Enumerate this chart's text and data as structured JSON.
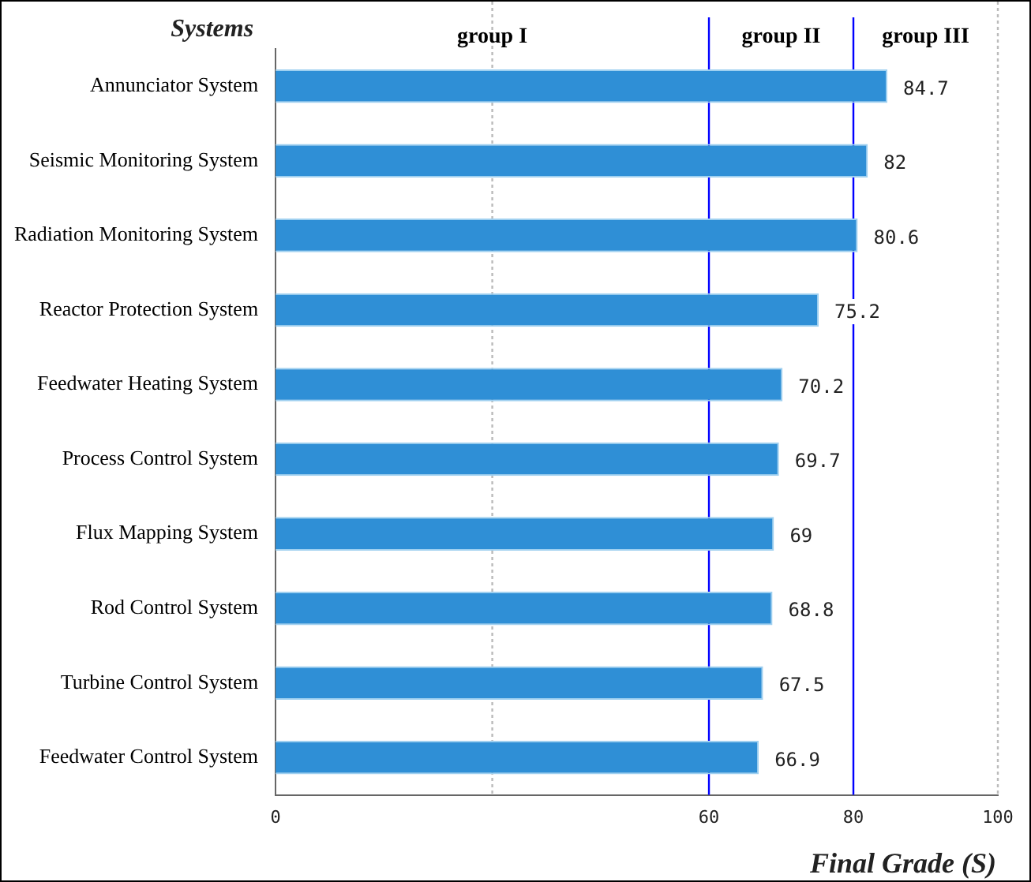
{
  "chart_data": {
    "type": "bar",
    "orientation": "horizontal",
    "ylabel": "Systems",
    "xlabel": "Final Grade (S)",
    "categories": [
      "Annunciator System",
      "Seismic Monitoring System",
      "Radiation Monitoring System",
      "Reactor Protection System",
      "Feedwater Heating System",
      "Process Control System",
      "Flux Mapping System",
      "Rod Control System",
      "Turbine Control System",
      "Feedwater Control System"
    ],
    "values": [
      84.7,
      82,
      80.6,
      75.2,
      70.2,
      69.7,
      69,
      68.8,
      67.5,
      66.9
    ],
    "color": "#2f8fd6",
    "xlim": [
      0,
      100
    ],
    "xticks": [
      0,
      60,
      80,
      100
    ],
    "data_labels": true,
    "ref_lines": [
      {
        "axis": "x",
        "value": 60,
        "color": "#0000ff"
      },
      {
        "axis": "x",
        "value": 80,
        "color": "#0000ff"
      },
      {
        "axis": "x",
        "value": 30,
        "color": "#bbbbbb",
        "line_style": "dotted"
      },
      {
        "axis": "x",
        "value": 100,
        "color": "#bbbbbb",
        "line_style": "dotted"
      }
    ],
    "annotations": [
      "group I",
      "group II",
      "group III"
    ]
  }
}
